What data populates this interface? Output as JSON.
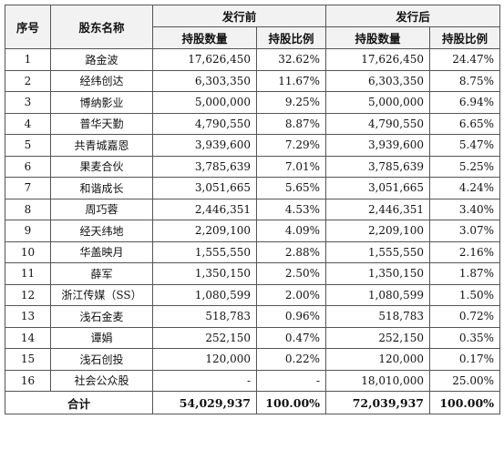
{
  "table": {
    "headers": {
      "index": "序号",
      "name": "股东名称",
      "before": "发行前",
      "after": "发行后",
      "shares": "持股数量",
      "ratio": "持股比例"
    },
    "rows": [
      {
        "no": "1",
        "name": "路金波",
        "before_shares": "17,626,450",
        "before_ratio": "32.62%",
        "after_shares": "17,626,450",
        "after_ratio": "24.47%"
      },
      {
        "no": "2",
        "name": "经纬创达",
        "before_shares": "6,303,350",
        "before_ratio": "11.67%",
        "after_shares": "6,303,350",
        "after_ratio": "8.75%"
      },
      {
        "no": "3",
        "name": "博纳影业",
        "before_shares": "5,000,000",
        "before_ratio": "9.25%",
        "after_shares": "5,000,000",
        "after_ratio": "6.94%"
      },
      {
        "no": "4",
        "name": "普华天勤",
        "before_shares": "4,790,550",
        "before_ratio": "8.87%",
        "after_shares": "4,790,550",
        "after_ratio": "6.65%"
      },
      {
        "no": "5",
        "name": "共青城嘉恩",
        "before_shares": "3,939,600",
        "before_ratio": "7.29%",
        "after_shares": "3,939,600",
        "after_ratio": "5.47%"
      },
      {
        "no": "6",
        "name": "果麦合伙",
        "before_shares": "3,785,639",
        "before_ratio": "7.01%",
        "after_shares": "3,785,639",
        "after_ratio": "5.25%"
      },
      {
        "no": "7",
        "name": "和谐成长",
        "before_shares": "3,051,665",
        "before_ratio": "5.65%",
        "after_shares": "3,051,665",
        "after_ratio": "4.24%"
      },
      {
        "no": "8",
        "name": "周巧蓉",
        "before_shares": "2,446,351",
        "before_ratio": "4.53%",
        "after_shares": "2,446,351",
        "after_ratio": "3.40%"
      },
      {
        "no": "9",
        "name": "经天纬地",
        "before_shares": "2,209,100",
        "before_ratio": "4.09%",
        "after_shares": "2,209,100",
        "after_ratio": "3.07%"
      },
      {
        "no": "10",
        "name": "华盖映月",
        "before_shares": "1,555,550",
        "before_ratio": "2.88%",
        "after_shares": "1,555,550",
        "after_ratio": "2.16%"
      },
      {
        "no": "11",
        "name": "薛军",
        "before_shares": "1,350,150",
        "before_ratio": "2.50%",
        "after_shares": "1,350,150",
        "after_ratio": "1.87%"
      },
      {
        "no": "12",
        "name": "浙江传媒（SS）",
        "before_shares": "1,080,599",
        "before_ratio": "2.00%",
        "after_shares": "1,080,599",
        "after_ratio": "1.50%"
      },
      {
        "no": "13",
        "name": "浅石金麦",
        "before_shares": "518,783",
        "before_ratio": "0.96%",
        "after_shares": "518,783",
        "after_ratio": "0.72%"
      },
      {
        "no": "14",
        "name": "谭娟",
        "before_shares": "252,150",
        "before_ratio": "0.47%",
        "after_shares": "252,150",
        "after_ratio": "0.35%"
      },
      {
        "no": "15",
        "name": "浅石创投",
        "before_shares": "120,000",
        "before_ratio": "0.22%",
        "after_shares": "120,000",
        "after_ratio": "0.17%"
      },
      {
        "no": "16",
        "name": "社会公众股",
        "before_shares": "-",
        "before_ratio": "-",
        "after_shares": "18,010,000",
        "after_ratio": "25.00%"
      }
    ],
    "total": {
      "label": "合计",
      "before_shares": "54,029,937",
      "before_ratio": "100.00%",
      "after_shares": "72,039,937",
      "after_ratio": "100.00%"
    }
  }
}
